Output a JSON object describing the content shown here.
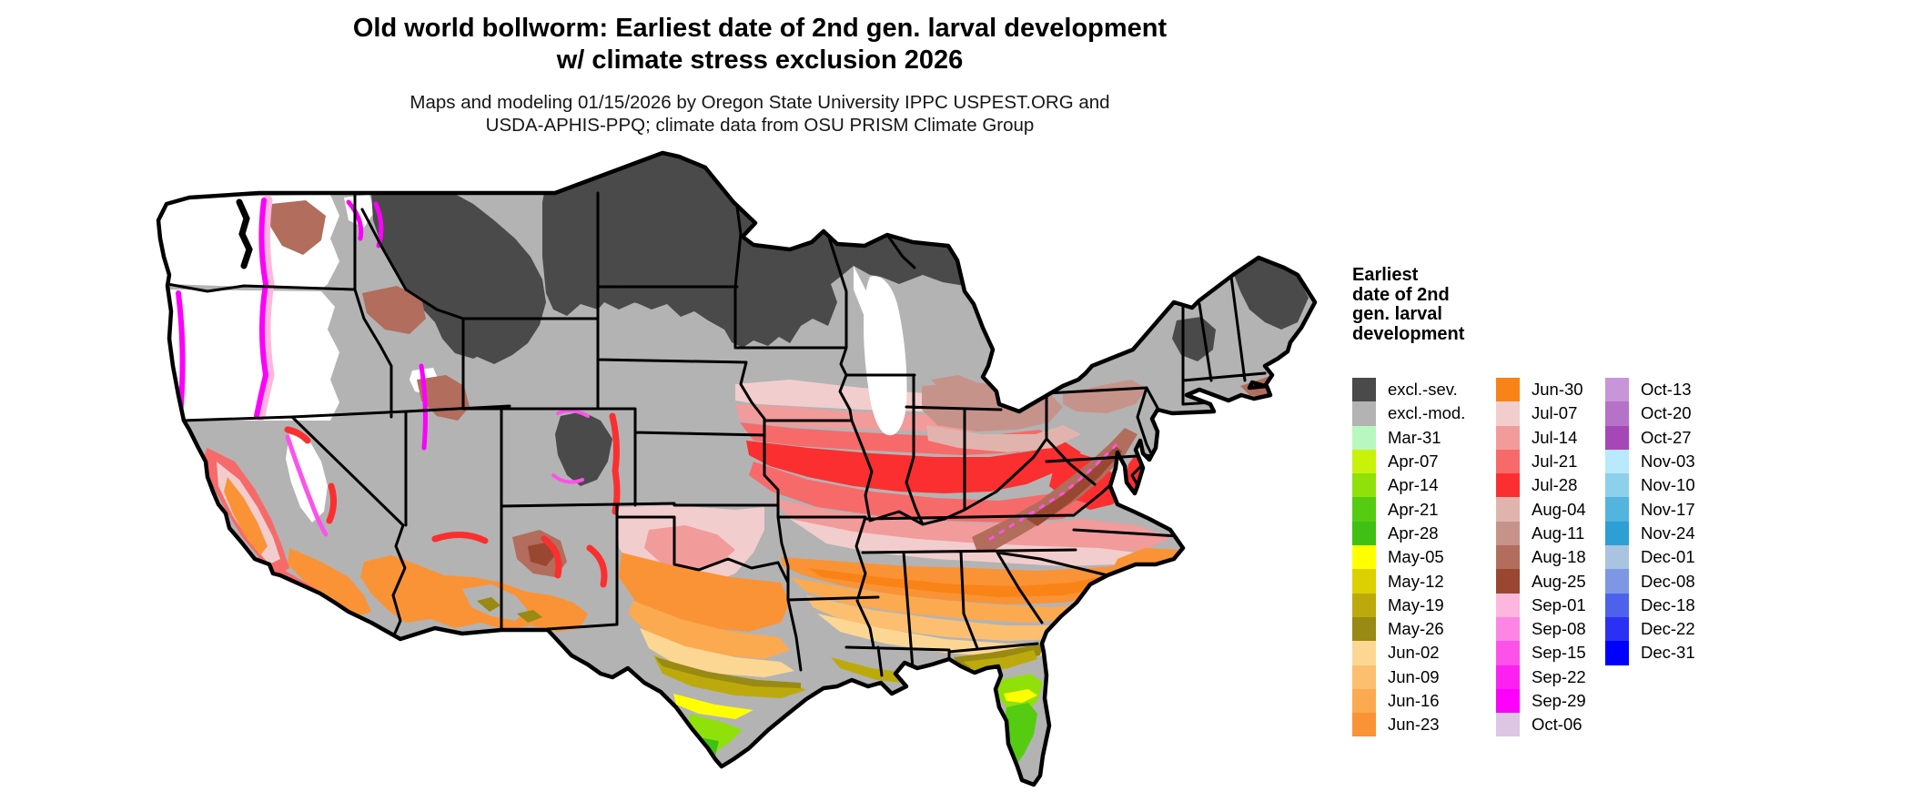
{
  "header": {
    "title_line1": "Old world bollworm: Earliest date of 2nd gen. larval development",
    "title_line2": "w/ climate stress exclusion 2026",
    "subtitle_line1": "Maps and modeling 01/15/2026 by Oregon State University IPPC USPEST.ORG and",
    "subtitle_line2": "USDA-APHIS-PPQ; climate data from OSU PRISM Climate Group"
  },
  "legend": {
    "title_lines": [
      "Earliest",
      "date of 2nd",
      "gen. larval",
      "development"
    ],
    "columns": [
      [
        {
          "label": "excl.-sev.",
          "color": "#4a4a4a"
        },
        {
          "label": "excl.-mod.",
          "color": "#b3b3b3"
        },
        {
          "label": "Mar-31",
          "color": "#b8f8c0"
        },
        {
          "label": "Apr-07",
          "color": "#c9f20b"
        },
        {
          "label": "Apr-14",
          "color": "#90e00a"
        },
        {
          "label": "Apr-21",
          "color": "#55cc11"
        },
        {
          "label": "Apr-28",
          "color": "#3fc013"
        },
        {
          "label": "May-05",
          "color": "#ffff00"
        },
        {
          "label": "May-12",
          "color": "#ddd000"
        },
        {
          "label": "May-19",
          "color": "#bcaa0c"
        },
        {
          "label": "May-26",
          "color": "#988a12"
        },
        {
          "label": "Jun-02",
          "color": "#fcd794"
        },
        {
          "label": "Jun-09",
          "color": "#fcbf70"
        },
        {
          "label": "Jun-16",
          "color": "#fbaa50"
        },
        {
          "label": "Jun-23",
          "color": "#fa9335"
        }
      ],
      [
        {
          "label": "Jun-30",
          "color": "#f98316"
        },
        {
          "label": "Jul-07",
          "color": "#f2cdcd"
        },
        {
          "label": "Jul-14",
          "color": "#f29b9b"
        },
        {
          "label": "Jul-21",
          "color": "#f76a6a"
        },
        {
          "label": "Jul-28",
          "color": "#fb2f2f"
        },
        {
          "label": "Aug-04",
          "color": "#e0b4ac"
        },
        {
          "label": "Aug-11",
          "color": "#c6938a"
        },
        {
          "label": "Aug-18",
          "color": "#b26d5c"
        },
        {
          "label": "Aug-25",
          "color": "#9a4732"
        },
        {
          "label": "Sep-01",
          "color": "#fdb7dd"
        },
        {
          "label": "Sep-08",
          "color": "#fd85e4"
        },
        {
          "label": "Sep-15",
          "color": "#fd52ea"
        },
        {
          "label": "Sep-22",
          "color": "#fd21f1"
        },
        {
          "label": "Sep-29",
          "color": "#fc00fc"
        },
        {
          "label": "Oct-06",
          "color": "#dcc6e4"
        }
      ],
      [
        {
          "label": "Oct-13",
          "color": "#c795d8"
        },
        {
          "label": "Oct-20",
          "color": "#b671c8"
        },
        {
          "label": "Oct-27",
          "color": "#a647b8"
        },
        {
          "label": "Nov-03",
          "color": "#b8e9fc"
        },
        {
          "label": "Nov-10",
          "color": "#8cd0ec"
        },
        {
          "label": "Nov-17",
          "color": "#53b4de"
        },
        {
          "label": "Nov-24",
          "color": "#2d9fd4"
        },
        {
          "label": "Dec-01",
          "color": "#a9c4e0"
        },
        {
          "label": "Dec-08",
          "color": "#7e97e4"
        },
        {
          "label": "Dec-18",
          "color": "#4d62ec"
        },
        {
          "label": "Dec-22",
          "color": "#2b31f2"
        },
        {
          "label": "Dec-31",
          "color": "#0000fe"
        }
      ]
    ]
  }
}
